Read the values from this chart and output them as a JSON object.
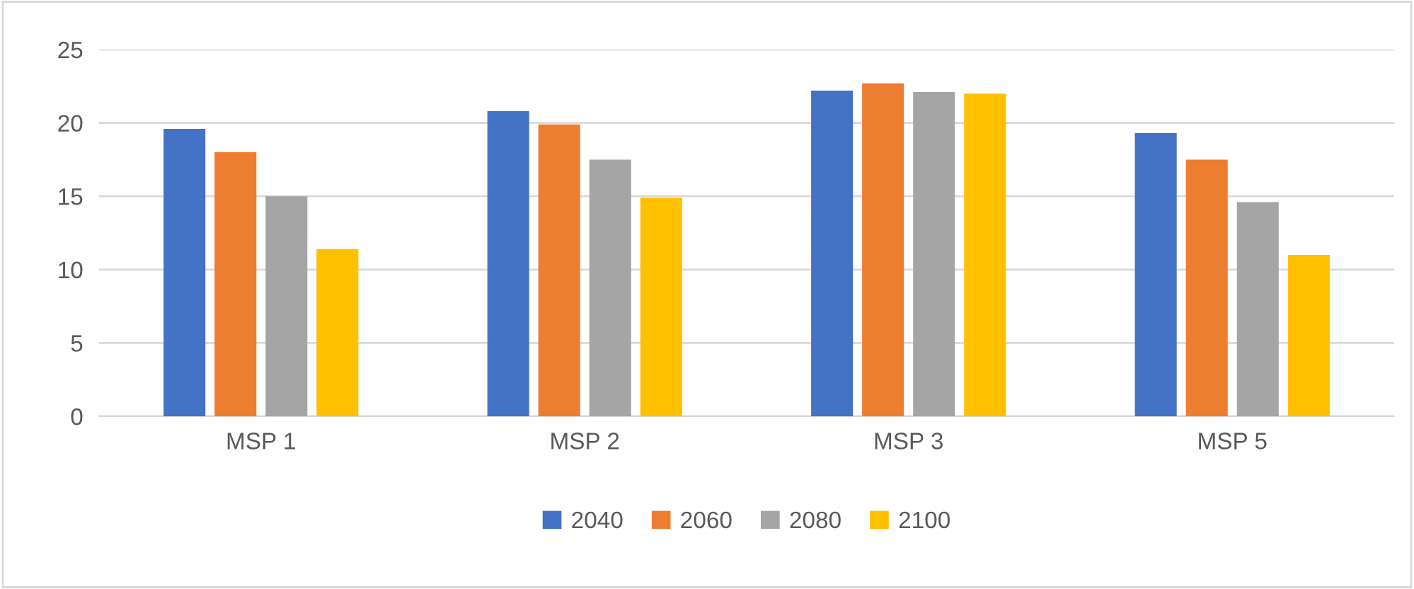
{
  "chart_data": {
    "type": "bar",
    "categories": [
      "MSP 1",
      "MSP 2",
      "MSP 3",
      "MSP 5"
    ],
    "series": [
      {
        "name": "2040",
        "color": "#4472c4",
        "values": [
          19.6,
          20.8,
          22.2,
          19.3
        ]
      },
      {
        "name": "2060",
        "color": "#ed7d31",
        "values": [
          18.0,
          19.9,
          22.7,
          17.5
        ]
      },
      {
        "name": "2080",
        "color": "#a5a5a5",
        "values": [
          15.0,
          17.5,
          22.1,
          14.6
        ]
      },
      {
        "name": "2100",
        "color": "#ffc000",
        "values": [
          11.4,
          14.9,
          22.0,
          11.0
        ]
      }
    ],
    "ylim": [
      0,
      25
    ],
    "yticks": [
      0,
      5,
      10,
      15,
      20,
      25
    ],
    "grid": "y",
    "legend": "bottom"
  }
}
